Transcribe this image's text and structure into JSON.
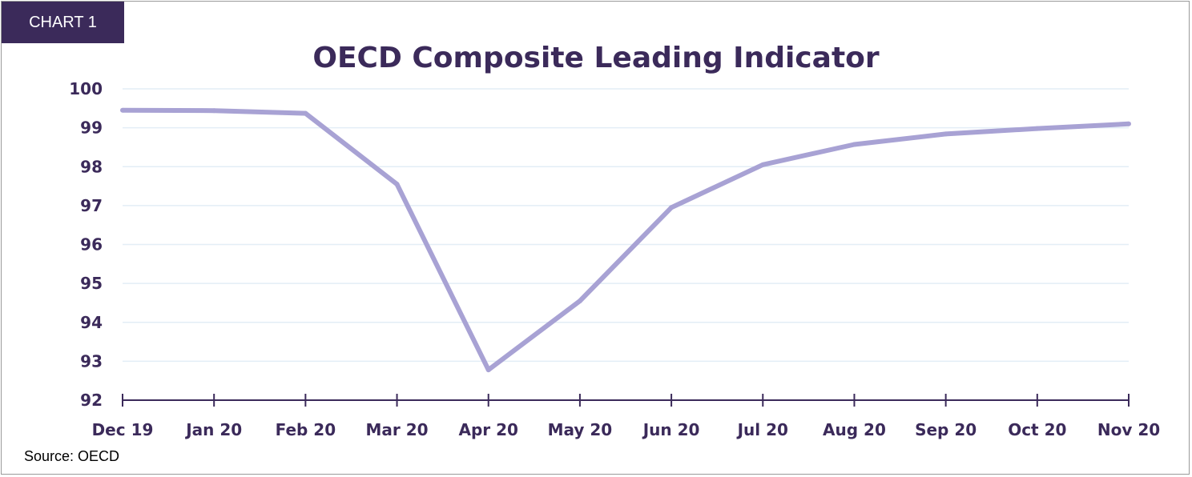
{
  "tag": "CHART 1",
  "source": "Source: OECD",
  "colors": {
    "line": "#a8a2d4",
    "text": "#3b2a5a",
    "grid": "#e3eef6",
    "axis": "#3b2a5a",
    "tag_bg": "#3b2a5a"
  },
  "chart_data": {
    "type": "line",
    "title": "OECD Composite Leading Indicator",
    "xlabel": "",
    "ylabel": "",
    "categories": [
      "Dec 19",
      "Jan 20",
      "Feb 20",
      "Mar 20",
      "Apr 20",
      "May 20",
      "Jun 20",
      "Jul 20",
      "Aug 20",
      "Sep 20",
      "Oct 20",
      "Nov 20"
    ],
    "series": [
      {
        "values": [
          99.45,
          99.44,
          99.37,
          97.55,
          92.78,
          94.55,
          96.95,
          98.05,
          98.57,
          98.84,
          98.98,
          99.1
        ]
      }
    ],
    "ylim": [
      92,
      100
    ],
    "yticks": [
      92,
      93,
      94,
      95,
      96,
      97,
      98,
      99,
      100
    ],
    "grid": true,
    "legend": "none"
  }
}
